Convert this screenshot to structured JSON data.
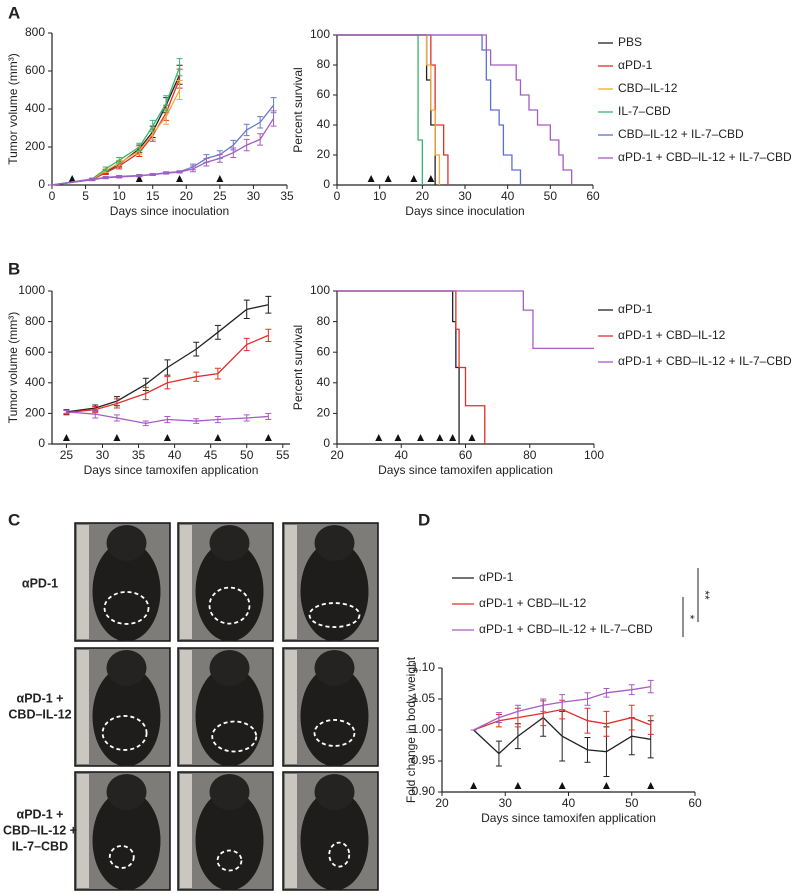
{
  "panels": [
    "A",
    "B",
    "C",
    "D"
  ],
  "photo_rows": [
    [
      "αPD-1"
    ],
    [
      "αPD-1 +",
      "CBD–IL-12"
    ],
    [
      "αPD-1 +",
      "CBD–IL-12 +",
      "IL-7–CBD"
    ]
  ],
  "chart_data": [
    {
      "type": "line",
      "xlabel": "Days since inoculation",
      "ylabel": "Tumor volume (mm³)",
      "x": [
        0,
        6,
        8,
        10,
        13,
        15,
        17,
        19,
        21,
        23,
        25,
        27,
        29,
        31,
        33
      ],
      "xlim": [
        0,
        35
      ],
      "xticks": [
        0,
        5,
        10,
        15,
        20,
        25,
        30,
        35
      ],
      "ylim": [
        0,
        800
      ],
      "yticks": [
        0,
        200,
        400,
        600,
        800
      ],
      "arrows": [
        3,
        13,
        19,
        25
      ],
      "series": [
        {
          "color": "#222222",
          "values": [
            0,
            30,
            70,
            110,
            190,
            280,
            420,
            580,
            null,
            null,
            null,
            null,
            null,
            null,
            null
          ],
          "errors": [
            0,
            5,
            10,
            15,
            20,
            30,
            40,
            50,
            null,
            null,
            null,
            null,
            null,
            null,
            null
          ]
        },
        {
          "color": "#e0302a",
          "values": [
            0,
            28,
            65,
            100,
            170,
            260,
            380,
            560,
            null,
            null,
            null,
            null,
            null,
            null,
            null
          ],
          "errors": [
            0,
            5,
            10,
            15,
            20,
            30,
            40,
            50,
            null,
            null,
            null,
            null,
            null,
            null,
            null
          ]
        },
        {
          "color": "#f2a93b",
          "values": [
            0,
            30,
            75,
            115,
            180,
            270,
            360,
            500,
            null,
            null,
            null,
            null,
            null,
            null,
            null
          ],
          "errors": [
            0,
            5,
            10,
            15,
            20,
            30,
            40,
            50,
            null,
            null,
            null,
            null,
            null,
            null,
            null
          ]
        },
        {
          "color": "#3cb46e",
          "values": [
            0,
            32,
            85,
            130,
            200,
            310,
            430,
            620,
            null,
            null,
            null,
            null,
            null,
            null,
            null
          ],
          "errors": [
            0,
            5,
            10,
            15,
            20,
            30,
            40,
            45,
            null,
            null,
            null,
            null,
            null,
            null,
            null
          ]
        },
        {
          "color": "#6a7bc8",
          "values": [
            0,
            30,
            40,
            45,
            50,
            55,
            65,
            70,
            95,
            140,
            160,
            210,
            290,
            330,
            420
          ],
          "errors": [
            0,
            5,
            5,
            5,
            5,
            5,
            5,
            5,
            15,
            20,
            20,
            25,
            30,
            30,
            40
          ]
        },
        {
          "color": "#a65cc2",
          "values": [
            0,
            28,
            38,
            42,
            48,
            55,
            62,
            68,
            85,
            120,
            140,
            170,
            210,
            240,
            350
          ],
          "errors": [
            0,
            5,
            5,
            5,
            5,
            5,
            5,
            5,
            15,
            20,
            20,
            25,
            30,
            30,
            40
          ]
        }
      ]
    },
    {
      "type": "step",
      "xlabel": "Days since inoculation",
      "ylabel": "Percent survival",
      "xlim": [
        0,
        60
      ],
      "xticks": [
        0,
        10,
        20,
        30,
        40,
        50,
        60
      ],
      "ylim": [
        0,
        100
      ],
      "yticks": [
        0,
        20,
        40,
        60,
        80,
        100
      ],
      "arrows": [
        8,
        12,
        18,
        22
      ],
      "series": [
        {
          "name": "PBS",
          "color": "#222222",
          "x": [
            0,
            21,
            22,
            23
          ],
          "values": [
            100,
            70,
            40,
            0
          ]
        },
        {
          "name": "αPD-1",
          "color": "#e0302a",
          "x": [
            0,
            22,
            23,
            25,
            26
          ],
          "values": [
            100,
            80,
            40,
            20,
            0
          ]
        },
        {
          "name": "CBD–IL-12",
          "color": "#f2a93b",
          "x": [
            0,
            21,
            22,
            23,
            24
          ],
          "values": [
            100,
            80,
            50,
            20,
            0
          ]
        },
        {
          "name": "IL-7–CBD",
          "color": "#3cb46e",
          "x": [
            0,
            19,
            20
          ],
          "values": [
            100,
            30,
            0
          ]
        },
        {
          "name": "CBD–IL-12 + IL-7–CBD",
          "color": "#5b6fd6",
          "x": [
            0,
            34,
            35,
            36,
            38,
            39,
            41,
            43
          ],
          "values": [
            100,
            90,
            70,
            50,
            40,
            20,
            10,
            0
          ]
        },
        {
          "name": "αPD-1 + CBD–IL-12 + IL-7–CBD",
          "color": "#a65cc2",
          "x": [
            0,
            35,
            36,
            42,
            43,
            45,
            47,
            50,
            52,
            53,
            55
          ],
          "values": [
            100,
            90,
            80,
            70,
            60,
            50,
            40,
            30,
            20,
            10,
            0
          ]
        }
      ]
    },
    {
      "type": "line",
      "xlabel": "Days since tamoxifen application",
      "ylabel": "Tumor volume (mm³)",
      "x": [
        25,
        29,
        32,
        36,
        39,
        43,
        46,
        50,
        53
      ],
      "xlim": [
        23,
        56
      ],
      "xticks": [
        25,
        30,
        35,
        40,
        45,
        50,
        55
      ],
      "ylim": [
        0,
        1000
      ],
      "yticks": [
        0,
        200,
        400,
        600,
        800,
        1000
      ],
      "arrows": [
        25,
        32,
        39,
        46,
        53
      ],
      "series": [
        {
          "color": "#222222",
          "values": [
            210,
            235,
            280,
            390,
            500,
            620,
            730,
            880,
            910
          ],
          "errors": [
            15,
            20,
            30,
            40,
            50,
            45,
            45,
            60,
            55
          ]
        },
        {
          "color": "#e0302a",
          "values": [
            205,
            225,
            265,
            330,
            400,
            440,
            460,
            650,
            710
          ],
          "errors": [
            15,
            20,
            30,
            40,
            40,
            30,
            35,
            40,
            40
          ]
        },
        {
          "color": "#a65cc2",
          "values": [
            210,
            195,
            170,
            135,
            160,
            150,
            160,
            170,
            180
          ],
          "errors": [
            10,
            25,
            20,
            15,
            20,
            15,
            20,
            20,
            20
          ]
        }
      ]
    },
    {
      "type": "step",
      "xlabel": "Days since tamoxifen application",
      "ylabel": "Percent survival",
      "xlim": [
        20,
        100
      ],
      "xticks": [
        20,
        40,
        60,
        80,
        100
      ],
      "ylim": [
        0,
        100
      ],
      "yticks": [
        0,
        20,
        40,
        60,
        80,
        100
      ],
      "arrows": [
        33,
        39,
        46,
        52,
        56,
        62
      ],
      "series": [
        {
          "name": "αPD-1",
          "color": "#222222",
          "x": [
            20,
            56,
            57,
            58
          ],
          "values": [
            100,
            80,
            50,
            0
          ]
        },
        {
          "name": "αPD-1 + CBD–IL-12",
          "color": "#e0302a",
          "x": [
            20,
            57,
            58,
            60,
            66
          ],
          "values": [
            100,
            75,
            50,
            25,
            0
          ]
        },
        {
          "name": "αPD-1 + CBD–IL-12 + IL-7–CBD",
          "color": "#a65cc2",
          "x": [
            20,
            78,
            81,
            100
          ],
          "values": [
            100,
            87.5,
            62.5,
            62.5
          ]
        }
      ]
    },
    {
      "type": "line",
      "xlabel": "Days since tamoxifen application",
      "ylabel": "Fold change in body weight",
      "x": [
        25,
        29,
        32,
        36,
        39,
        43,
        46,
        50,
        53
      ],
      "xlim": [
        20,
        60
      ],
      "xticks": [
        20,
        30,
        40,
        50,
        60
      ],
      "ylim": [
        0.9,
        1.1
      ],
      "yticks": [
        {
          "value": 0.9,
          "label": "0.90"
        },
        {
          "value": 0.95,
          "label": "0.95"
        },
        {
          "value": 1.0,
          "label": "1.00"
        },
        {
          "value": 1.05,
          "label": "1.05"
        },
        {
          "value": 1.1,
          "label": "1.10"
        }
      ],
      "arrows": [
        25,
        32,
        39,
        46,
        53
      ],
      "significance": [
        "*",
        "**"
      ],
      "series": [
        {
          "name": "αPD-1",
          "color": "#222222",
          "values": [
            1.0,
            0.962,
            0.99,
            1.02,
            0.99,
            0.968,
            0.965,
            0.99,
            0.985
          ],
          "errors": [
            0,
            0.02,
            0.02,
            0.03,
            0.04,
            0.02,
            0.04,
            0.03,
            0.03
          ]
        },
        {
          "name": "αPD-1 + CBD–IL-12",
          "color": "#e0302a",
          "values": [
            1.0,
            1.015,
            1.02,
            1.027,
            1.033,
            1.015,
            1.01,
            1.02,
            1.008
          ],
          "errors": [
            0,
            0.01,
            0.015,
            0.02,
            0.015,
            0.02,
            0.02,
            0.02,
            0.015
          ]
        },
        {
          "name": "αPD-1 + CBD–IL-12 + IL-7–CBD",
          "color": "#a65cc2",
          "values": [
            1.0,
            1.02,
            1.03,
            1.04,
            1.045,
            1.05,
            1.06,
            1.065,
            1.07
          ],
          "errors": [
            0,
            0.008,
            0.01,
            0.01,
            0.012,
            0.01,
            0.007,
            0.008,
            0.01
          ]
        }
      ]
    }
  ]
}
